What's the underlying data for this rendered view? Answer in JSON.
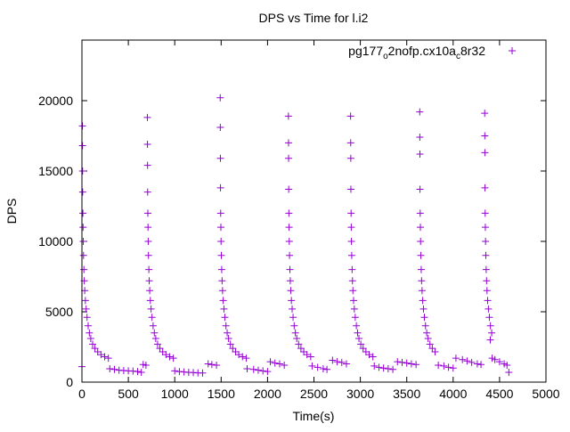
{
  "chart_data": {
    "type": "scatter",
    "title": "DPS vs Time for l.i2",
    "xlabel": "Time(s)",
    "ylabel": "DPS",
    "xlim": [
      0,
      5000
    ],
    "ylim": [
      0,
      24300
    ],
    "xticks": [
      0,
      500,
      1000,
      1500,
      2000,
      2500,
      3000,
      3500,
      4000,
      4500,
      5000
    ],
    "yticks": [
      0,
      5000,
      10000,
      15000,
      20000
    ],
    "grid": false,
    "legend_position": "top-right",
    "series": [
      {
        "name_parts": [
          "pg177",
          "o",
          "2nofp.cx10a",
          "c",
          "8r32"
        ],
        "name": "pg177_o2nofp.cx10a_c8r32",
        "color": "#9400d3",
        "marker": "plus",
        "points": [
          [
            0,
            1100
          ],
          [
            5,
            18200
          ],
          [
            6,
            16800
          ],
          [
            7,
            15000
          ],
          [
            8,
            13500
          ],
          [
            10,
            12000
          ],
          [
            12,
            11000
          ],
          [
            14,
            10000
          ],
          [
            17,
            9000
          ],
          [
            21,
            8000
          ],
          [
            25,
            7200
          ],
          [
            30,
            6500
          ],
          [
            37,
            5800
          ],
          [
            45,
            5200
          ],
          [
            55,
            4600
          ],
          [
            67,
            4000
          ],
          [
            80,
            3500
          ],
          [
            95,
            3100
          ],
          [
            115,
            2700
          ],
          [
            140,
            2400
          ],
          [
            170,
            2150
          ],
          [
            205,
            1950
          ],
          [
            245,
            1800
          ],
          [
            285,
            1700
          ],
          [
            300,
            950
          ],
          [
            350,
            900
          ],
          [
            400,
            850
          ],
          [
            450,
            820
          ],
          [
            500,
            800
          ],
          [
            550,
            780
          ],
          [
            600,
            750
          ],
          [
            640,
            700
          ],
          [
            660,
            1250
          ],
          [
            690,
            1200
          ],
          [
            705,
            18800
          ],
          [
            706,
            16900
          ],
          [
            707,
            15400
          ],
          [
            708,
            13500
          ],
          [
            710,
            12000
          ],
          [
            712,
            11000
          ],
          [
            714,
            10000
          ],
          [
            717,
            9000
          ],
          [
            721,
            8000
          ],
          [
            725,
            7200
          ],
          [
            730,
            6500
          ],
          [
            737,
            5800
          ],
          [
            745,
            5200
          ],
          [
            755,
            4600
          ],
          [
            767,
            4000
          ],
          [
            780,
            3500
          ],
          [
            795,
            3100
          ],
          [
            815,
            2700
          ],
          [
            840,
            2400
          ],
          [
            870,
            2150
          ],
          [
            905,
            1950
          ],
          [
            945,
            1800
          ],
          [
            985,
            1700
          ],
          [
            1000,
            800
          ],
          [
            1050,
            750
          ],
          [
            1100,
            720
          ],
          [
            1150,
            700
          ],
          [
            1200,
            680
          ],
          [
            1250,
            660
          ],
          [
            1300,
            650
          ],
          [
            1360,
            1300
          ],
          [
            1400,
            1250
          ],
          [
            1450,
            1200
          ],
          [
            1490,
            20200
          ],
          [
            1491,
            18100
          ],
          [
            1492,
            15900
          ],
          [
            1493,
            13800
          ],
          [
            1495,
            12000
          ],
          [
            1497,
            11000
          ],
          [
            1499,
            10000
          ],
          [
            1502,
            9000
          ],
          [
            1506,
            8000
          ],
          [
            1510,
            7200
          ],
          [
            1515,
            6500
          ],
          [
            1522,
            5800
          ],
          [
            1530,
            5200
          ],
          [
            1540,
            4600
          ],
          [
            1552,
            4000
          ],
          [
            1565,
            3500
          ],
          [
            1580,
            3100
          ],
          [
            1600,
            2700
          ],
          [
            1625,
            2400
          ],
          [
            1655,
            2150
          ],
          [
            1690,
            1950
          ],
          [
            1730,
            1800
          ],
          [
            1770,
            1700
          ],
          [
            1780,
            950
          ],
          [
            1850,
            900
          ],
          [
            1900,
            850
          ],
          [
            1950,
            800
          ],
          [
            2000,
            750
          ],
          [
            2030,
            1450
          ],
          [
            2080,
            1350
          ],
          [
            2130,
            1300
          ],
          [
            2180,
            1200
          ],
          [
            2225,
            18900
          ],
          [
            2226,
            17000
          ],
          [
            2227,
            15900
          ],
          [
            2228,
            13700
          ],
          [
            2230,
            12000
          ],
          [
            2232,
            11000
          ],
          [
            2234,
            10000
          ],
          [
            2237,
            9000
          ],
          [
            2241,
            8000
          ],
          [
            2245,
            7200
          ],
          [
            2250,
            6500
          ],
          [
            2257,
            5800
          ],
          [
            2265,
            5200
          ],
          [
            2275,
            4600
          ],
          [
            2287,
            4000
          ],
          [
            2300,
            3500
          ],
          [
            2315,
            3100
          ],
          [
            2335,
            2700
          ],
          [
            2360,
            2400
          ],
          [
            2390,
            2150
          ],
          [
            2425,
            1950
          ],
          [
            2465,
            1800
          ],
          [
            2480,
            1150
          ],
          [
            2540,
            1050
          ],
          [
            2600,
            950
          ],
          [
            2640,
            900
          ],
          [
            2700,
            1550
          ],
          [
            2750,
            1450
          ],
          [
            2800,
            1400
          ],
          [
            2850,
            1300
          ],
          [
            2895,
            18900
          ],
          [
            2896,
            17000
          ],
          [
            2897,
            15900
          ],
          [
            2898,
            13700
          ],
          [
            2900,
            12000
          ],
          [
            2902,
            11000
          ],
          [
            2904,
            10000
          ],
          [
            2907,
            9000
          ],
          [
            2911,
            8000
          ],
          [
            2915,
            7200
          ],
          [
            2920,
            6500
          ],
          [
            2927,
            5800
          ],
          [
            2935,
            5200
          ],
          [
            2945,
            4600
          ],
          [
            2957,
            4000
          ],
          [
            2970,
            3500
          ],
          [
            2985,
            3100
          ],
          [
            3005,
            2700
          ],
          [
            3030,
            2400
          ],
          [
            3060,
            2150
          ],
          [
            3095,
            1950
          ],
          [
            3135,
            1800
          ],
          [
            3150,
            1150
          ],
          [
            3200,
            1050
          ],
          [
            3250,
            1000
          ],
          [
            3300,
            950
          ],
          [
            3350,
            900
          ],
          [
            3400,
            1450
          ],
          [
            3450,
            1400
          ],
          [
            3500,
            1350
          ],
          [
            3550,
            1300
          ],
          [
            3600,
            1250
          ],
          [
            3640,
            19200
          ],
          [
            3641,
            17400
          ],
          [
            3642,
            16200
          ],
          [
            3643,
            13700
          ],
          [
            3645,
            12000
          ],
          [
            3647,
            11000
          ],
          [
            3649,
            10000
          ],
          [
            3652,
            9000
          ],
          [
            3656,
            8000
          ],
          [
            3660,
            7200
          ],
          [
            3665,
            6500
          ],
          [
            3672,
            5800
          ],
          [
            3680,
            5200
          ],
          [
            3690,
            4600
          ],
          [
            3702,
            4000
          ],
          [
            3715,
            3500
          ],
          [
            3730,
            3100
          ],
          [
            3750,
            2700
          ],
          [
            3775,
            2400
          ],
          [
            3805,
            2150
          ],
          [
            3840,
            1200
          ],
          [
            3900,
            1150
          ],
          [
            3950,
            1050
          ],
          [
            4000,
            1000
          ],
          [
            4030,
            1700
          ],
          [
            4100,
            1600
          ],
          [
            4150,
            1500
          ],
          [
            4200,
            1400
          ],
          [
            4260,
            1300
          ],
          [
            4300,
            1250
          ],
          [
            4340,
            19100
          ],
          [
            4341,
            17500
          ],
          [
            4342,
            16300
          ],
          [
            4343,
            13800
          ],
          [
            4345,
            12000
          ],
          [
            4347,
            11000
          ],
          [
            4349,
            10000
          ],
          [
            4352,
            9000
          ],
          [
            4356,
            8000
          ],
          [
            4360,
            7200
          ],
          [
            4365,
            6500
          ],
          [
            4372,
            5800
          ],
          [
            4380,
            5200
          ],
          [
            4390,
            4600
          ],
          [
            4402,
            4000
          ],
          [
            4415,
            3500
          ],
          [
            4400,
            3000
          ],
          [
            4420,
            1700
          ],
          [
            4450,
            1600
          ],
          [
            4500,
            1450
          ],
          [
            4550,
            1300
          ],
          [
            4580,
            1200
          ],
          [
            4600,
            700
          ]
        ]
      }
    ]
  }
}
